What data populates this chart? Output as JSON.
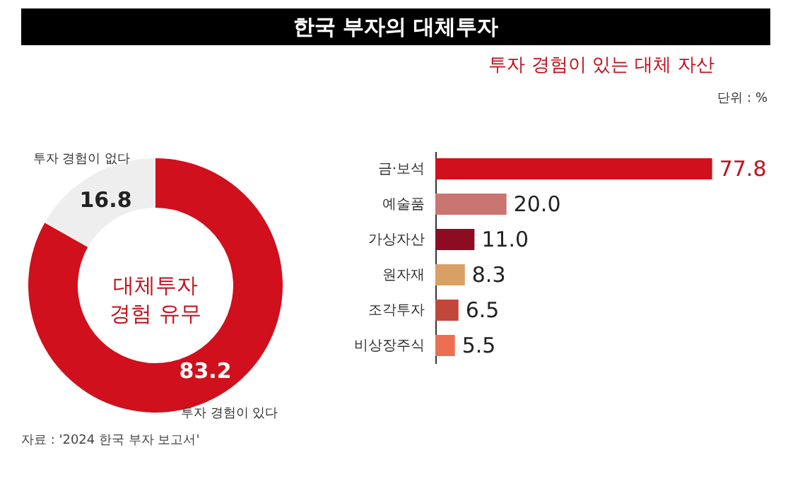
{
  "chart_data": [
    {
      "type": "donut",
      "title": "한국 부자의 대체투자",
      "categories": [
        "투자 경험이 있다",
        "투자 경험이 없다"
      ],
      "values": [
        83.2,
        16.8
      ],
      "colors": [
        "#d0101c",
        "#eeeeee"
      ],
      "data_labels": true,
      "legend": false,
      "annotations": [
        "대체투자 경험 유무",
        "자료 : '2024 한국 부자 보고서'"
      ]
    },
    {
      "type": "bar",
      "orientation": "horizontal",
      "title": "투자 경험이 있는 대체 자산",
      "categories": [
        "금·보석",
        "예술품",
        "가상자산",
        "원자재",
        "조각투자",
        "비상장주식"
      ],
      "values": [
        77.8,
        20.0,
        11.0,
        8.3,
        6.5,
        5.5
      ],
      "colors": [
        "#d0101c",
        "#c97670",
        "#8e0c22",
        "#d9a066",
        "#c0473a",
        "#ec6f52"
      ],
      "value_labels": [
        "77.8",
        "20.0",
        "11.0",
        "8.3",
        "6.5",
        "5.5"
      ],
      "annotations": [
        "단위 : %"
      ]
    }
  ]
}
